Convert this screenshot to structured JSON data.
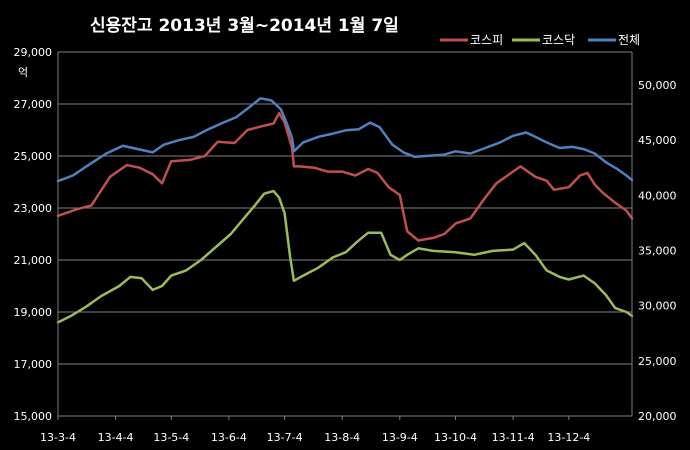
{
  "chart_data": {
    "type": "line",
    "title": "신용잔고 2013년 3월~2014년 1월 7일",
    "y_left_label": "억",
    "ylim_left": [
      15000,
      29000
    ],
    "ylim_right": [
      20000,
      53000
    ],
    "y_left_ticks": [
      "15,000",
      "17,000",
      "19,000",
      "21,000",
      "23,000",
      "25,000",
      "27,000",
      "29,000"
    ],
    "y_right_ticks": [
      "20,000",
      "25,000",
      "30,000",
      "35,000",
      "40,000",
      "45,000",
      "50,000"
    ],
    "y_right_tick_values": [
      20000,
      25000,
      30000,
      35000,
      40000,
      45000,
      50000
    ],
    "x_ticks": [
      "13-3-4",
      "13-4-4",
      "13-5-4",
      "13-6-4",
      "13-7-4",
      "13-8-4",
      "13-9-4",
      "13-10-4",
      "13-11-4",
      "13-12-4"
    ],
    "grid": true,
    "legend_position": "top-right",
    "series": [
      {
        "name": "코스피",
        "axis": "left",
        "color": "#c0504d",
        "points": [
          [
            "2013-03-04",
            22700
          ],
          [
            "2013-03-14",
            22950
          ],
          [
            "2013-03-22",
            23100
          ],
          [
            "2013-04-01",
            24200
          ],
          [
            "2013-04-10",
            24650
          ],
          [
            "2013-04-17",
            24550
          ],
          [
            "2013-04-24",
            24300
          ],
          [
            "2013-04-29",
            23950
          ],
          [
            "2013-05-04",
            24800
          ],
          [
            "2013-05-14",
            24850
          ],
          [
            "2013-05-22",
            25000
          ],
          [
            "2013-05-29",
            25550
          ],
          [
            "2013-06-07",
            25500
          ],
          [
            "2013-06-14",
            26000
          ],
          [
            "2013-06-22",
            26150
          ],
          [
            "2013-06-28",
            26250
          ],
          [
            "2013-07-01",
            26650
          ],
          [
            "2013-07-04",
            26300
          ],
          [
            "2013-07-08",
            25300
          ],
          [
            "2013-07-09",
            24600
          ],
          [
            "2013-07-12",
            24600
          ],
          [
            "2013-07-20",
            24550
          ],
          [
            "2013-07-27",
            24400
          ],
          [
            "2013-08-04",
            24400
          ],
          [
            "2013-08-11",
            24250
          ],
          [
            "2013-08-18",
            24500
          ],
          [
            "2013-08-23",
            24350
          ],
          [
            "2013-08-29",
            23800
          ],
          [
            "2013-09-04",
            23500
          ],
          [
            "2013-09-08",
            22100
          ],
          [
            "2013-09-14",
            21750
          ],
          [
            "2013-09-22",
            21850
          ],
          [
            "2013-09-28",
            22000
          ],
          [
            "2013-10-04",
            22400
          ],
          [
            "2013-10-12",
            22600
          ],
          [
            "2013-10-20",
            23400
          ],
          [
            "2013-10-26",
            23950
          ],
          [
            "2013-11-01",
            24250
          ],
          [
            "2013-11-08",
            24600
          ],
          [
            "2013-11-16",
            24200
          ],
          [
            "2013-11-22",
            24050
          ],
          [
            "2013-11-26",
            23700
          ],
          [
            "2013-12-04",
            23800
          ],
          [
            "2013-12-10",
            24250
          ],
          [
            "2013-12-14",
            24350
          ],
          [
            "2013-12-18",
            23900
          ],
          [
            "2013-12-22",
            23600
          ],
          [
            "2013-12-29",
            23200
          ],
          [
            "2014-01-04",
            22900
          ],
          [
            "2014-01-07",
            22600
          ]
        ]
      },
      {
        "name": "코스닥",
        "axis": "left",
        "color": "#9bbb59",
        "points": [
          [
            "2013-03-04",
            18600
          ],
          [
            "2013-03-11",
            18850
          ],
          [
            "2013-03-19",
            19200
          ],
          [
            "2013-03-27",
            19600
          ],
          [
            "2013-04-06",
            20000
          ],
          [
            "2013-04-12",
            20350
          ],
          [
            "2013-04-18",
            20300
          ],
          [
            "2013-04-24",
            19850
          ],
          [
            "2013-04-29",
            20000
          ],
          [
            "2013-05-04",
            20400
          ],
          [
            "2013-05-12",
            20600
          ],
          [
            "2013-05-20",
            21000
          ],
          [
            "2013-05-28",
            21500
          ],
          [
            "2013-06-05",
            22000
          ],
          [
            "2013-06-12",
            22600
          ],
          [
            "2013-06-18",
            23100
          ],
          [
            "2013-06-23",
            23550
          ],
          [
            "2013-06-28",
            23650
          ],
          [
            "2013-07-01",
            23400
          ],
          [
            "2013-07-04",
            22800
          ],
          [
            "2013-07-07",
            21100
          ],
          [
            "2013-07-09",
            20200
          ],
          [
            "2013-07-14",
            20400
          ],
          [
            "2013-07-22",
            20700
          ],
          [
            "2013-07-30",
            21100
          ],
          [
            "2013-08-06",
            21300
          ],
          [
            "2013-08-12",
            21700
          ],
          [
            "2013-08-18",
            22050
          ],
          [
            "2013-08-25",
            22050
          ],
          [
            "2013-08-30",
            21200
          ],
          [
            "2013-09-04",
            21000
          ],
          [
            "2013-09-08",
            21200
          ],
          [
            "2013-09-14",
            21450
          ],
          [
            "2013-09-22",
            21350
          ],
          [
            "2013-10-04",
            21300
          ],
          [
            "2013-10-14",
            21200
          ],
          [
            "2013-10-24",
            21350
          ],
          [
            "2013-11-04",
            21400
          ],
          [
            "2013-11-10",
            21650
          ],
          [
            "2013-11-16",
            21200
          ],
          [
            "2013-11-22",
            20600
          ],
          [
            "2013-11-29",
            20350
          ],
          [
            "2013-12-04",
            20250
          ],
          [
            "2013-12-12",
            20400
          ],
          [
            "2013-12-18",
            20100
          ],
          [
            "2013-12-24",
            19650
          ],
          [
            "2013-12-29",
            19150
          ],
          [
            "2014-01-04",
            19000
          ],
          [
            "2014-01-07",
            18850
          ]
        ]
      },
      {
        "name": "전체",
        "axis": "right",
        "color": "#4f81bd",
        "points": [
          [
            "2013-03-04",
            41300
          ],
          [
            "2013-03-12",
            41800
          ],
          [
            "2013-03-20",
            42700
          ],
          [
            "2013-03-30",
            43800
          ],
          [
            "2013-04-08",
            44500
          ],
          [
            "2013-04-16",
            44200
          ],
          [
            "2013-04-24",
            43900
          ],
          [
            "2013-04-30",
            44600
          ],
          [
            "2013-05-08",
            45000
          ],
          [
            "2013-05-16",
            45300
          ],
          [
            "2013-05-24",
            46000
          ],
          [
            "2013-06-01",
            46600
          ],
          [
            "2013-06-08",
            47100
          ],
          [
            "2013-06-15",
            48000
          ],
          [
            "2013-06-21",
            48800
          ],
          [
            "2013-06-27",
            48600
          ],
          [
            "2013-07-02",
            47800
          ],
          [
            "2013-07-05",
            46600
          ],
          [
            "2013-07-08",
            45200
          ],
          [
            "2013-07-09",
            44000
          ],
          [
            "2013-07-14",
            44800
          ],
          [
            "2013-07-22",
            45300
          ],
          [
            "2013-07-30",
            45600
          ],
          [
            "2013-08-06",
            45900
          ],
          [
            "2013-08-13",
            46000
          ],
          [
            "2013-08-19",
            46600
          ],
          [
            "2013-08-24",
            46200
          ],
          [
            "2013-08-31",
            44600
          ],
          [
            "2013-09-06",
            43900
          ],
          [
            "2013-09-12",
            43500
          ],
          [
            "2013-09-20",
            43600
          ],
          [
            "2013-09-28",
            43700
          ],
          [
            "2013-10-04",
            44000
          ],
          [
            "2013-10-12",
            43800
          ],
          [
            "2013-10-20",
            44300
          ],
          [
            "2013-10-28",
            44800
          ],
          [
            "2013-11-04",
            45400
          ],
          [
            "2013-11-11",
            45700
          ],
          [
            "2013-11-16",
            45300
          ],
          [
            "2013-11-22",
            44800
          ],
          [
            "2013-11-29",
            44300
          ],
          [
            "2013-12-06",
            44400
          ],
          [
            "2013-12-12",
            44200
          ],
          [
            "2013-12-18",
            43800
          ],
          [
            "2013-12-24",
            43000
          ],
          [
            "2013-12-30",
            42400
          ],
          [
            "2014-01-04",
            41800
          ],
          [
            "2014-01-07",
            41400
          ]
        ]
      }
    ]
  }
}
